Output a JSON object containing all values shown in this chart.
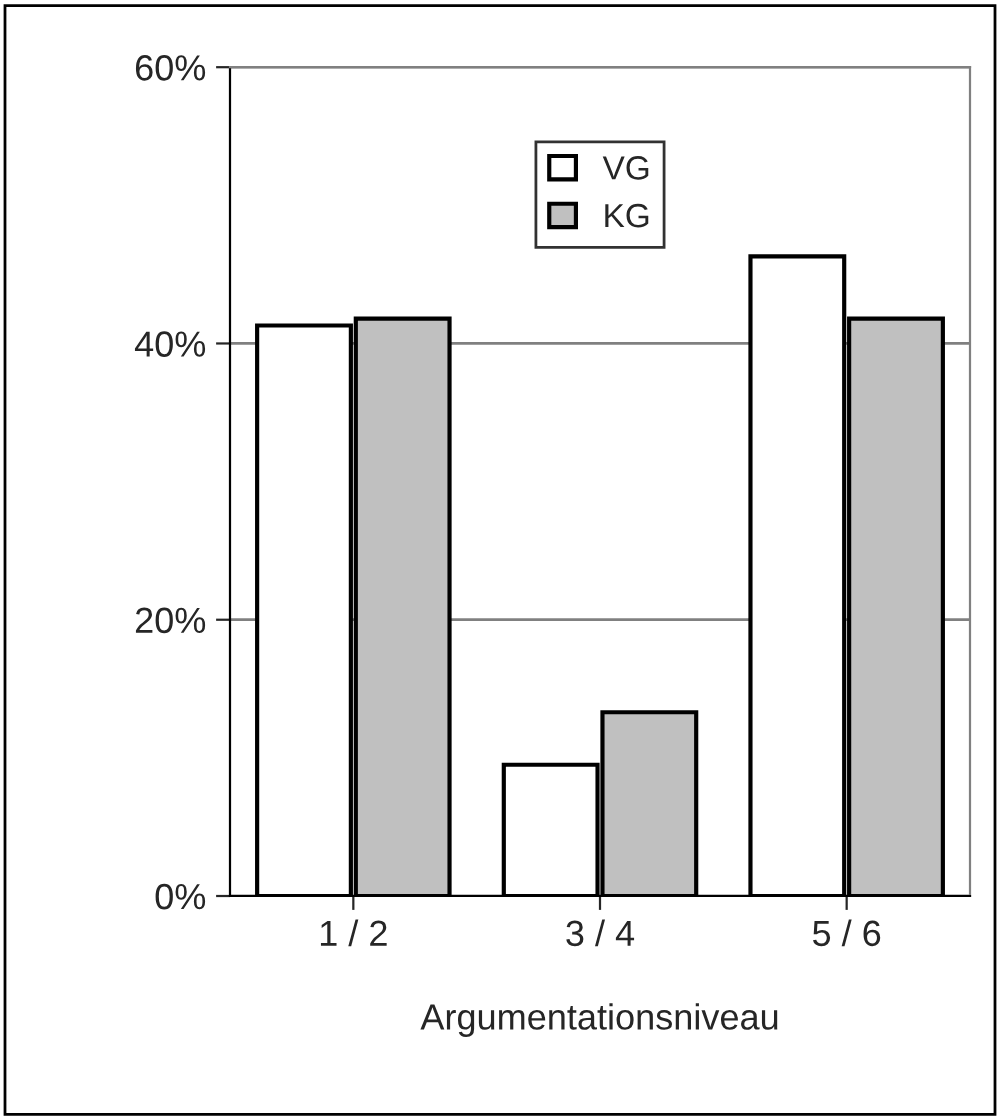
{
  "chart_data": {
    "type": "bar",
    "xlabel": "Argumentationsniveau",
    "categories": [
      "1 / 2",
      "3 / 4",
      "5 / 6"
    ],
    "series": [
      {
        "name": "VG",
        "color": "#ffffff",
        "values": [
          41.3,
          9.5,
          46.3
        ]
      },
      {
        "name": "KG",
        "color": "#c0c0c0",
        "values": [
          41.8,
          13.3,
          41.8
        ]
      }
    ],
    "ylim": [
      0,
      60
    ],
    "yticks": [
      {
        "value": 0,
        "label": "0%"
      },
      {
        "value": 20,
        "label": "20%"
      },
      {
        "value": 40,
        "label": "40%"
      },
      {
        "value": 60,
        "label": "60%"
      }
    ],
    "grid": "y",
    "legend": "top"
  }
}
